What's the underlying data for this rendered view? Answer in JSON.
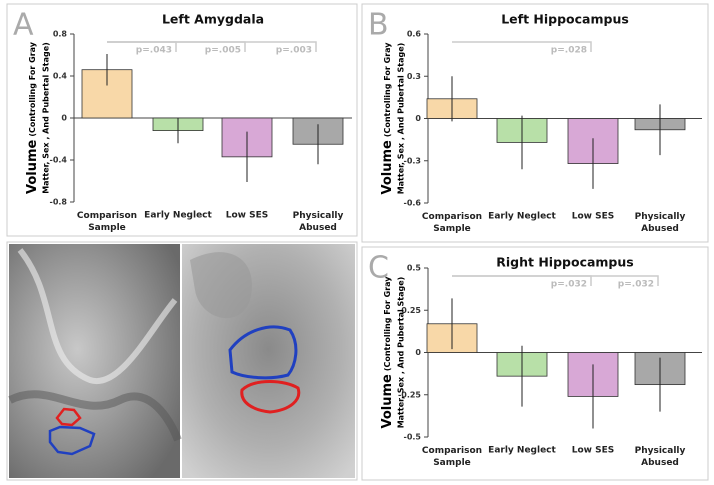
{
  "chart_data": [
    {
      "type": "bar",
      "panel": "A",
      "title": "Left Amygdala",
      "ylabel": "Volume",
      "ylabel_detail": [
        "(Controlling For Gray",
        "Matter, Sex , And Pubertal Stage)"
      ],
      "categories": [
        "Comparison Sample",
        "Early Neglect",
        "Low SES",
        "Physically Abused"
      ],
      "values": [
        0.46,
        -0.12,
        -0.37,
        -0.25
      ],
      "errors": [
        0.15,
        0.12,
        0.24,
        0.19
      ],
      "colors": [
        "#f8d8a8",
        "#b8e0a8",
        "#d8a8d6",
        "#a8a8a8"
      ],
      "ylim": [
        -0.8,
        0.8
      ],
      "yticks": [
        -0.8,
        -0.4,
        0,
        0.4,
        0.8
      ],
      "significance": [
        {
          "from": 0,
          "to": 1,
          "label": "p=.043"
        },
        {
          "from": 0,
          "to": 2,
          "label": "p=.005"
        },
        {
          "from": 0,
          "to": 3,
          "label": "p=.003"
        }
      ]
    },
    {
      "type": "bar",
      "panel": "B",
      "title": "Left Hippocampus",
      "ylabel": "Volume",
      "ylabel_detail": [
        "(Controlling For Gray",
        "Matter, Sex , And Pubertal Stage)"
      ],
      "categories": [
        "Comparison Sample",
        "Early Neglect",
        "Low SES",
        "Physically Abused"
      ],
      "values": [
        0.14,
        -0.17,
        -0.32,
        -0.08
      ],
      "errors": [
        0.16,
        0.19,
        0.18,
        0.18
      ],
      "colors": [
        "#f8d8a8",
        "#b8e0a8",
        "#d8a8d6",
        "#a8a8a8"
      ],
      "ylim": [
        -0.6,
        0.6
      ],
      "yticks": [
        -0.6,
        -0.3,
        0,
        0.3,
        0.6
      ],
      "significance": [
        {
          "from": 0,
          "to": 2,
          "label": "p=.028"
        }
      ]
    },
    {
      "type": "bar",
      "panel": "C",
      "title": "Right Hippocampus",
      "ylabel": "Volume",
      "ylabel_detail": [
        "(Controlling For Gray",
        "Matter, Sex , And Pubertal Stage)"
      ],
      "categories": [
        "Comparison Sample",
        "Early Neglect",
        "Low SES",
        "Physically Abused"
      ],
      "values": [
        0.17,
        -0.14,
        -0.26,
        -0.19
      ],
      "errors": [
        0.15,
        0.18,
        0.19,
        0.16
      ],
      "colors": [
        "#f8d8a8",
        "#b8e0a8",
        "#d8a8d6",
        "#a8a8a8"
      ],
      "ylim": [
        -0.5,
        0.5
      ],
      "yticks": [
        -0.5,
        -0.25,
        0,
        0.25,
        0.5
      ],
      "significance": [
        {
          "from": 0,
          "to": 2,
          "label": "p=.032"
        },
        {
          "from": 0,
          "to": 3,
          "label": "p=.032"
        }
      ]
    }
  ]
}
